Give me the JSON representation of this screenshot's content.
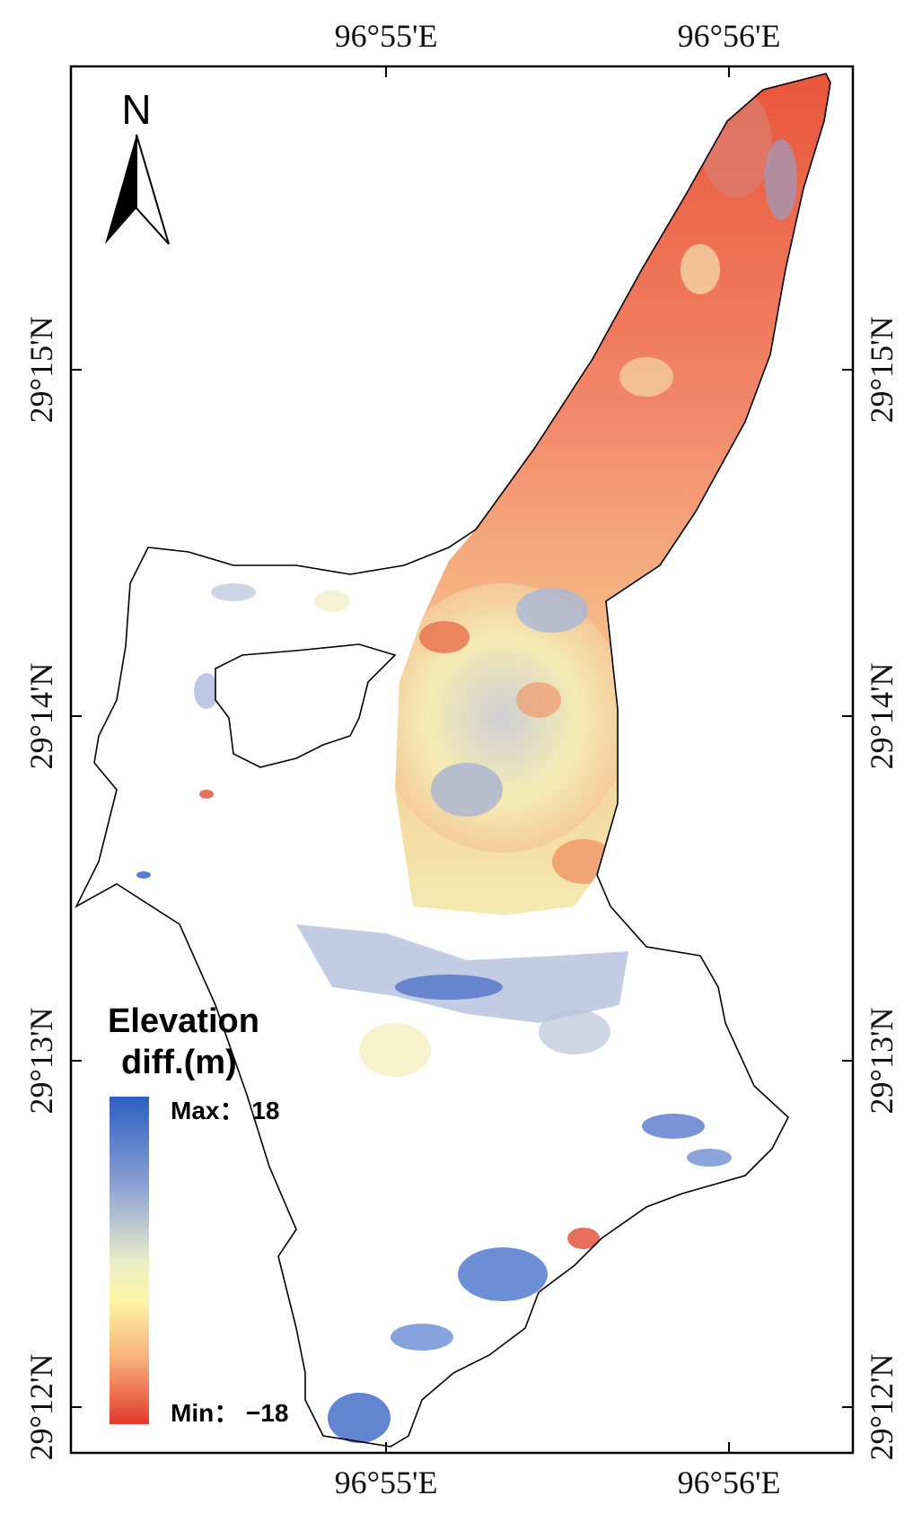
{
  "map": {
    "north_arrow_label": "N",
    "longitude_ticks": [
      "96°55'E",
      "96°56'E"
    ],
    "latitude_ticks": [
      "29°15'N",
      "29°14'N",
      "29°13'N",
      "29°12'N"
    ],
    "legend": {
      "title_line1": "Elevation",
      "title_line2": "diff.(m)",
      "max_label": "Max： 18",
      "min_label": "Min： −18",
      "max_value": 18,
      "min_value": -18,
      "colors": [
        "#2b5fc0",
        "#8fa3d4",
        "#e9ecc7",
        "#fdf6a6",
        "#f8b07a",
        "#e2392f"
      ]
    },
    "colors": {
      "boundary": "#000000",
      "high_diff": "#2b5fc0",
      "mid_diff": "#f7f1b8",
      "low_diff": "#e04b35"
    }
  }
}
